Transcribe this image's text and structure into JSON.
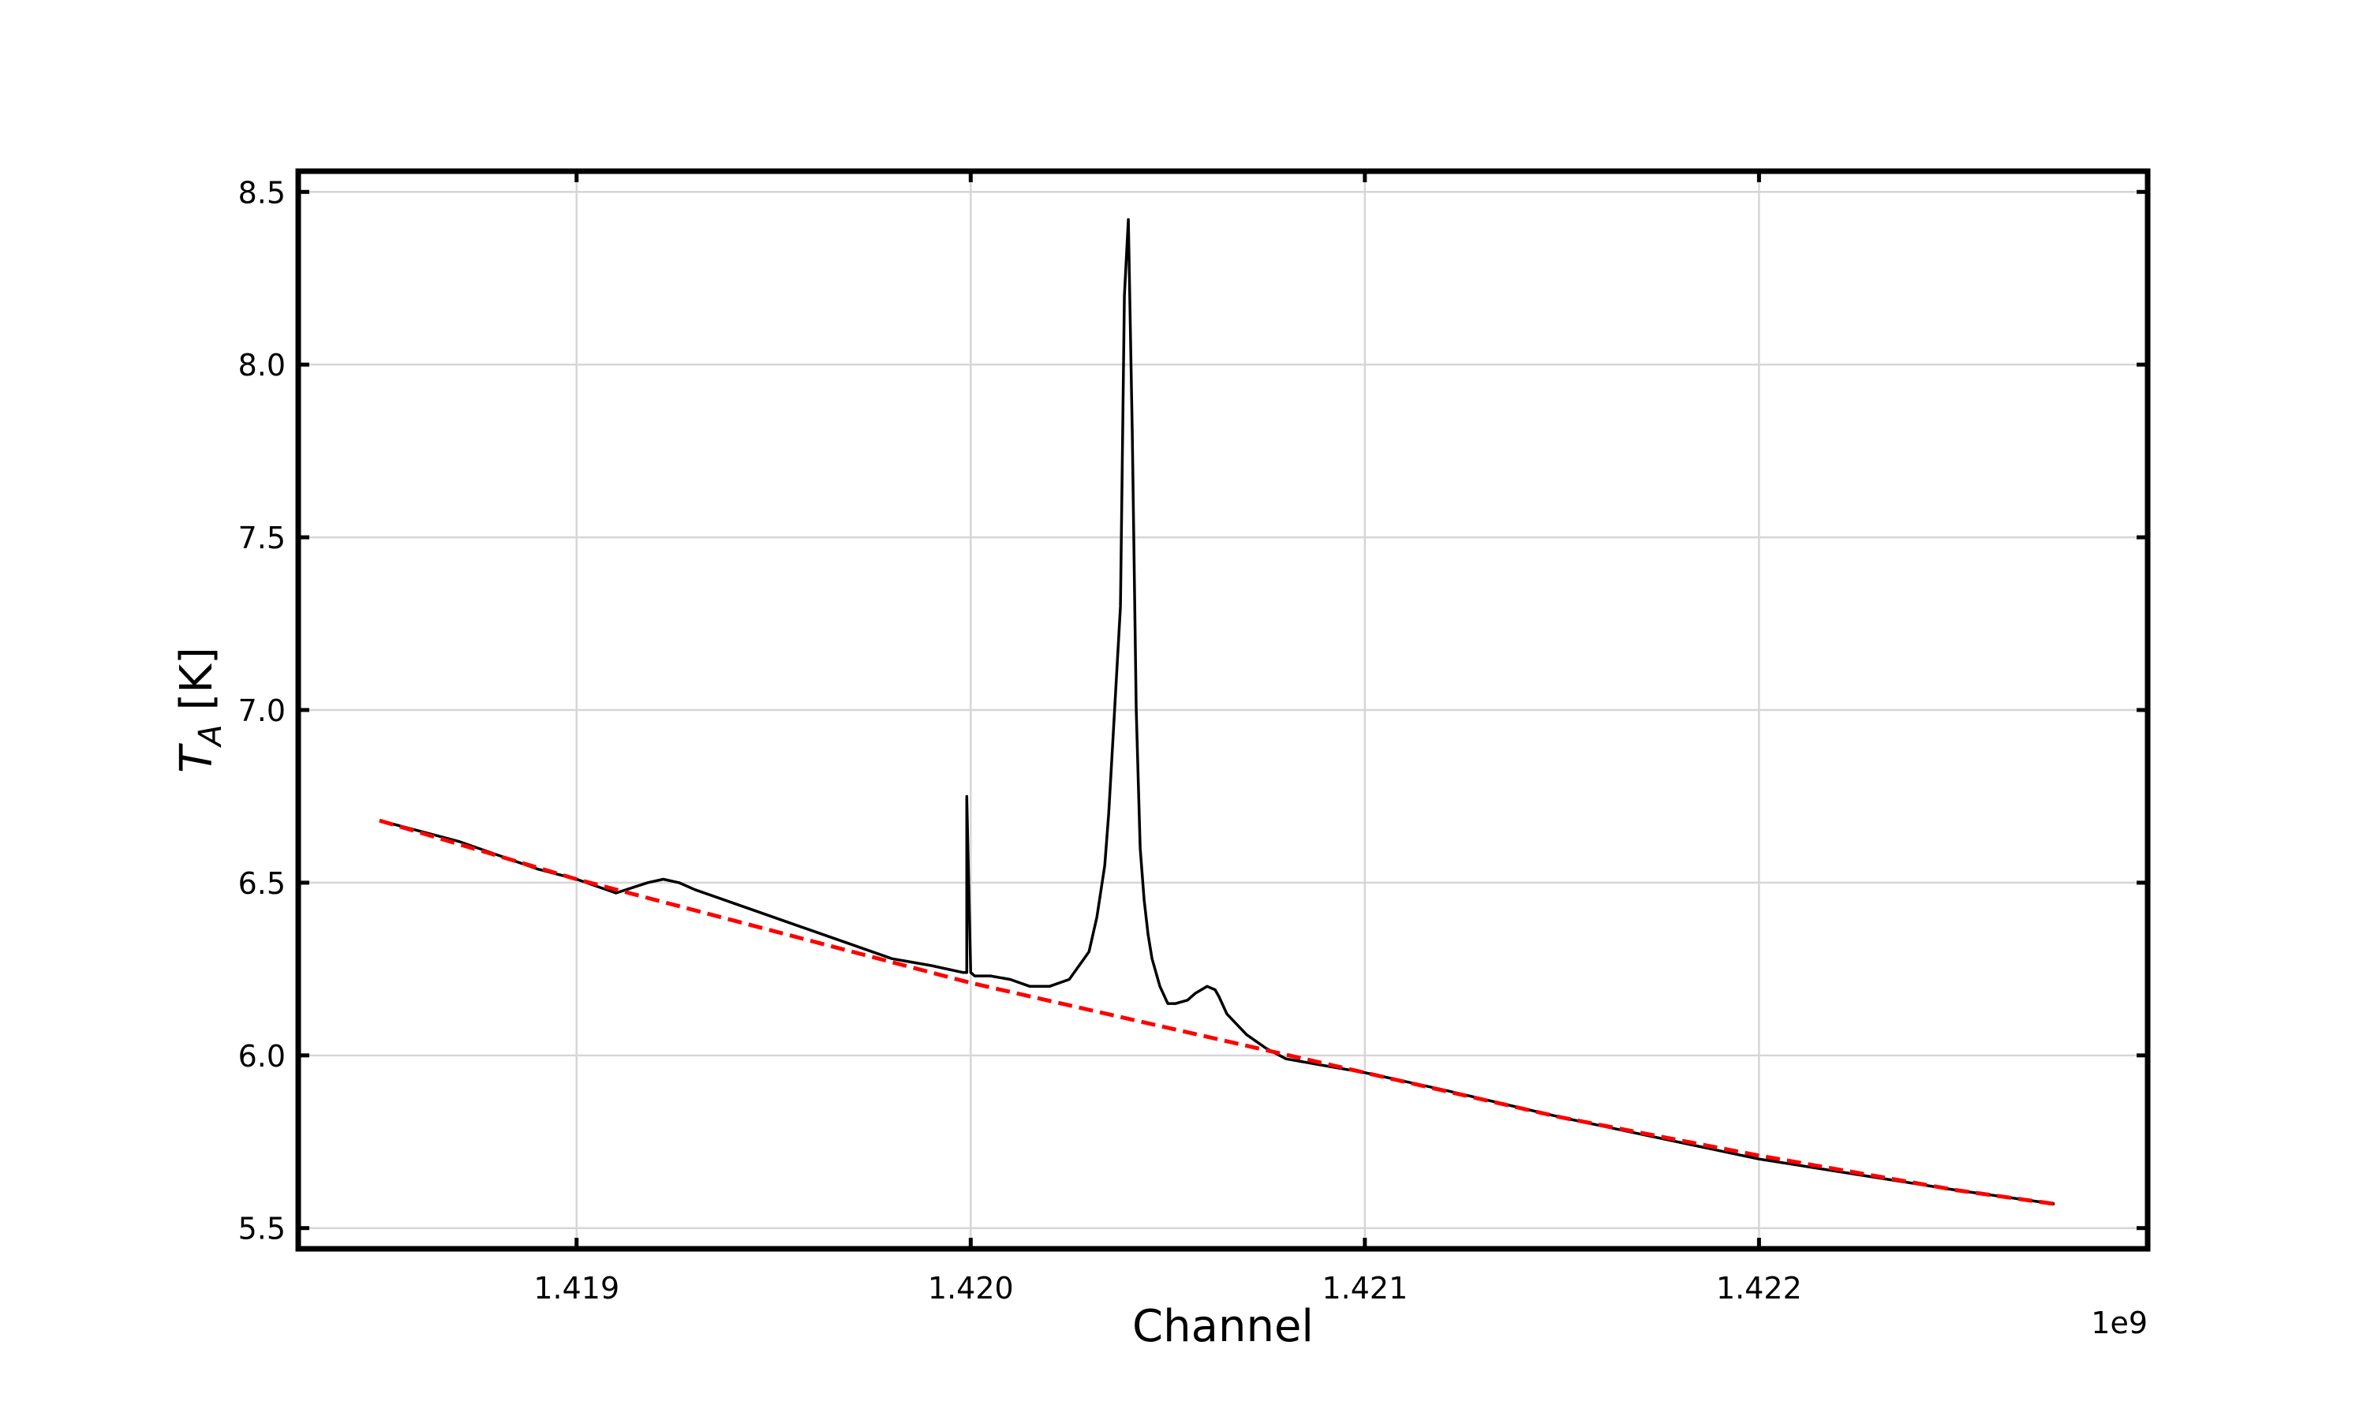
{
  "chart_data": {
    "type": "line",
    "title": "",
    "xlabel": "Channel",
    "ylabel_main": "T",
    "ylabel_sub": "A",
    "ylabel_unit": " [K]",
    "x_offset_label": "1e9",
    "xlim": [
      1.4182938,
      1.4229861
    ],
    "ylim": [
      5.44,
      8.56
    ],
    "xticks": [
      1.419,
      1.42,
      1.421,
      1.422
    ],
    "xtick_labels": [
      "1.419",
      "1.420",
      "1.421",
      "1.422"
    ],
    "yticks": [
      5.5,
      6.0,
      6.5,
      7.0,
      7.5,
      8.0,
      8.5
    ],
    "ytick_labels": [
      "5.5",
      "6.0",
      "6.5",
      "7.0",
      "7.5",
      "8.0",
      "8.5"
    ],
    "grid": true,
    "series": [
      {
        "style": "solid",
        "color": "#000000",
        "x": [
          1.4185,
          1.4187,
          1.4189,
          1.419,
          1.4191,
          1.41918,
          1.41922,
          1.41926,
          1.4193,
          1.4194,
          1.4195,
          1.4196,
          1.4197,
          1.4198,
          1.4199,
          1.41998,
          1.41999,
          1.41999,
          1.42,
          1.42001,
          1.42002,
          1.42005,
          1.4201,
          1.42015,
          1.4202,
          1.42025,
          1.4203,
          1.42032,
          1.42034,
          1.42035,
          1.42036,
          1.42038,
          1.42039,
          1.4204,
          1.42041,
          1.42042,
          1.42043,
          1.42044,
          1.42045,
          1.42046,
          1.42048,
          1.4205,
          1.42052,
          1.42055,
          1.42057,
          1.4206,
          1.42062,
          1.42063,
          1.42065,
          1.4207,
          1.42075,
          1.4208,
          1.4209,
          1.421,
          1.4212,
          1.4215,
          1.422,
          1.4225,
          1.42275
        ],
        "y": [
          6.68,
          6.62,
          6.54,
          6.51,
          6.47,
          6.5,
          6.51,
          6.5,
          6.48,
          6.44,
          6.4,
          6.36,
          6.32,
          6.28,
          6.26,
          6.24,
          6.24,
          6.75,
          6.24,
          6.23,
          6.23,
          6.23,
          6.22,
          6.2,
          6.2,
          6.22,
          6.3,
          6.4,
          6.55,
          6.7,
          6.9,
          7.3,
          8.2,
          8.42,
          7.8,
          7.0,
          6.6,
          6.45,
          6.35,
          6.28,
          6.2,
          6.15,
          6.15,
          6.16,
          6.18,
          6.2,
          6.19,
          6.17,
          6.12,
          6.06,
          6.02,
          5.99,
          5.97,
          5.95,
          5.9,
          5.82,
          5.7,
          5.61,
          5.57
        ]
      },
      {
        "style": "dashed",
        "color": "#ff0000",
        "x": [
          1.4185,
          1.419,
          1.4195,
          1.42,
          1.4205,
          1.421,
          1.4215,
          1.422,
          1.4225,
          1.42275
        ],
        "y": [
          6.68,
          6.51,
          6.36,
          6.21,
          6.08,
          5.95,
          5.82,
          5.71,
          5.61,
          5.57
        ]
      }
    ]
  }
}
